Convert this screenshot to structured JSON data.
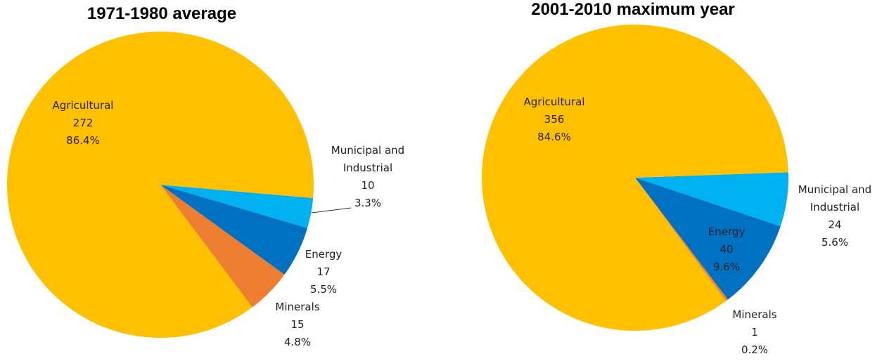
{
  "chart_data": [
    {
      "type": "pie",
      "title": "1971-1980 average",
      "categories": [
        "Agricultural",
        "Municipal and Industrial",
        "Energy",
        "Minerals"
      ],
      "values": [
        272,
        10,
        17,
        15
      ],
      "share_labels": [
        "86.4%",
        "3.3%",
        "5.5%",
        "4.8%"
      ],
      "colors": [
        "#FFC000",
        "#00B0F0",
        "#0070C0",
        "#ED7D31"
      ]
    },
    {
      "type": "pie",
      "title": "2001-2010 maximum year",
      "categories": [
        "Agricultural",
        "Municipal and Industrial",
        "Energy",
        "Minerals"
      ],
      "values": [
        356,
        24,
        40,
        1
      ],
      "share_labels": [
        "84.6%",
        "5.6%",
        "9.6%",
        "0.2%"
      ],
      "colors": [
        "#FFC000",
        "#00B0F0",
        "#0070C0",
        "#ED7D31"
      ]
    }
  ]
}
